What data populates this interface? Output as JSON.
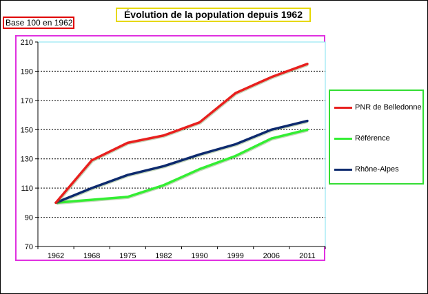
{
  "chart_data": {
    "type": "line",
    "title": "Évolution de la population depuis 1962",
    "subtitle": "Base 100 en 1962",
    "categories": [
      "1962",
      "1968",
      "1975",
      "1982",
      "1990",
      "1999",
      "2006",
      "2011"
    ],
    "ylim": [
      70,
      210
    ],
    "yticks": [
      70,
      90,
      110,
      130,
      150,
      170,
      190,
      210
    ],
    "grid": true,
    "legend": "right",
    "series": [
      {
        "name": "PNR de Belledonne",
        "color": "#e8201e",
        "values": [
          100,
          129,
          141,
          146,
          155,
          175,
          186,
          195
        ]
      },
      {
        "name": "Référence",
        "color": "#33ee33",
        "values": [
          100,
          102,
          104,
          112,
          123,
          132,
          144,
          150
        ]
      },
      {
        "name": "Rhône-Alpes",
        "color": "#0d2a6e",
        "values": [
          100,
          110,
          119,
          125,
          133,
          140,
          150,
          156
        ]
      }
    ]
  }
}
